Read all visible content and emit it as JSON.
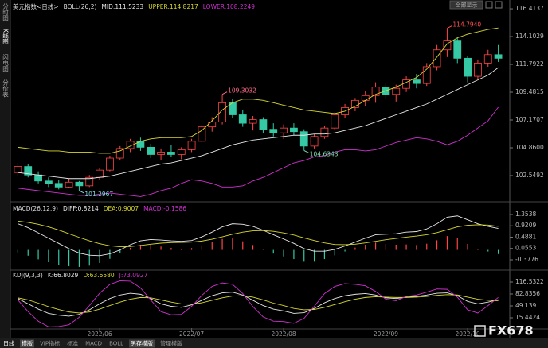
{
  "ui": {
    "sidebar": [
      "分时图",
      "K线图",
      "闪电图",
      "分价表"
    ],
    "top_button": "全部显示",
    "toolbar": [
      "日线",
      "模版",
      "VIP指标",
      "标准",
      "MACD",
      "BOLL",
      "另存模版",
      "管理模版"
    ],
    "watermark": "FX678"
  },
  "chart_data": [
    {
      "type": "candlestick",
      "title": "美元指数<日线>",
      "indicator": "BOLL(26,2)",
      "up_color": "#ff4545",
      "down_color": "#35c9a5",
      "categories": [
        null,
        null,
        null,
        null,
        null,
        null,
        null,
        null,
        "2022/06",
        null,
        null,
        null,
        null,
        null,
        null,
        null,
        null,
        "2022/07",
        null,
        null,
        null,
        null,
        null,
        null,
        null,
        null,
        "2022/08",
        null,
        null,
        null,
        null,
        null,
        null,
        null,
        null,
        null,
        "2022/09",
        null,
        null,
        null,
        null,
        null,
        null,
        null,
        "2022/10",
        null,
        null,
        null
      ],
      "ohlc": [
        [
          102.8,
          103.6,
          102.5,
          103.3
        ],
        [
          103.3,
          103.5,
          102.4,
          102.6
        ],
        [
          102.6,
          102.9,
          101.9,
          102.1
        ],
        [
          102.1,
          102.4,
          101.6,
          101.9
        ],
        [
          101.9,
          102.2,
          101.4,
          101.6
        ],
        [
          101.6,
          102.3,
          101.5,
          102.0
        ],
        [
          102.0,
          102.1,
          101.2967,
          101.7
        ],
        [
          101.7,
          102.6,
          101.6,
          102.4
        ],
        [
          102.4,
          103.2,
          102.2,
          103.0
        ],
        [
          103.0,
          104.2,
          102.9,
          104.0
        ],
        [
          104.0,
          105.0,
          103.8,
          104.8
        ],
        [
          104.8,
          105.6,
          104.5,
          105.4
        ],
        [
          105.4,
          105.7,
          104.6,
          104.9
        ],
        [
          104.9,
          105.2,
          104.0,
          104.3
        ],
        [
          104.3,
          104.8,
          103.8,
          104.5
        ],
        [
          104.5,
          105.1,
          104.1,
          104.3
        ],
        [
          104.3,
          104.9,
          103.9,
          104.7
        ],
        [
          104.7,
          105.6,
          104.5,
          105.4
        ],
        [
          105.4,
          106.8,
          105.3,
          106.6
        ],
        [
          106.6,
          107.4,
          106.2,
          107.0
        ],
        [
          107.0,
          109.3032,
          106.8,
          108.6
        ],
        [
          108.6,
          108.9,
          107.3,
          107.6
        ],
        [
          107.6,
          108.0,
          106.6,
          106.9
        ],
        [
          106.9,
          107.5,
          106.3,
          107.2
        ],
        [
          107.2,
          107.4,
          106.1,
          106.4
        ],
        [
          106.4,
          106.9,
          105.8,
          106.1
        ],
        [
          106.1,
          106.8,
          105.6,
          106.5
        ],
        [
          106.5,
          106.9,
          105.9,
          106.2
        ],
        [
          106.2,
          106.4,
          104.6343,
          105.0
        ],
        [
          105.0,
          106.0,
          104.8,
          105.8
        ],
        [
          105.8,
          106.7,
          105.6,
          106.5
        ],
        [
          106.5,
          107.8,
          106.3,
          107.6
        ],
        [
          107.6,
          108.5,
          107.3,
          108.2
        ],
        [
          108.2,
          109.0,
          107.9,
          108.8
        ],
        [
          108.8,
          109.6,
          108.3,
          109.2
        ],
        [
          109.2,
          110.3,
          108.6,
          109.9
        ],
        [
          109.9,
          110.2,
          108.9,
          109.3
        ],
        [
          109.3,
          110.1,
          108.7,
          109.8
        ],
        [
          109.8,
          110.8,
          109.5,
          110.5
        ],
        [
          110.5,
          111.0,
          109.8,
          110.2
        ],
        [
          110.2,
          111.9,
          110.0,
          111.6
        ],
        [
          111.6,
          113.4,
          111.3,
          113.0
        ],
        [
          113.0,
          114.794,
          112.4,
          113.8
        ],
        [
          113.8,
          114.0,
          111.9,
          112.3
        ],
        [
          112.3,
          112.5,
          110.3,
          110.8
        ],
        [
          110.8,
          112.2,
          110.6,
          111.9
        ],
        [
          111.9,
          113.0,
          111.6,
          112.6
        ],
        [
          112.6,
          113.4,
          112.0,
          112.3
        ]
      ],
      "annotations": [
        {
          "value": 109.3032,
          "label": "109.3032",
          "color": "#ff6b8a"
        },
        {
          "value": 104.6343,
          "label": "104.6343",
          "color": "#7fe0b0"
        },
        {
          "value": 101.2967,
          "label": "101.2967",
          "color": "#7fd8e0"
        },
        {
          "value": 114.794,
          "label": "114.7940",
          "color": "#ff5050"
        }
      ],
      "series": [
        {
          "name": "MID:111.5233",
          "color": "#e8e8e8",
          "values": [
            102.8,
            102.7,
            102.6,
            102.5,
            102.4,
            102.3,
            102.3,
            102.3,
            102.4,
            102.5,
            102.7,
            102.9,
            103.1,
            103.3,
            103.5,
            103.6,
            103.8,
            104.0,
            104.2,
            104.5,
            104.8,
            105.1,
            105.3,
            105.5,
            105.6,
            105.7,
            105.8,
            105.9,
            105.9,
            106.0,
            106.0,
            106.1,
            106.3,
            106.5,
            106.7,
            107.0,
            107.3,
            107.6,
            107.9,
            108.2,
            108.5,
            108.9,
            109.3,
            109.7,
            110.1,
            110.5,
            110.9,
            111.5233
          ]
        },
        {
          "name": "UPPER:114.8217",
          "color": "#d8d830",
          "values": [
            104.9,
            104.8,
            104.7,
            104.6,
            104.6,
            104.5,
            104.5,
            104.5,
            104.4,
            104.4,
            104.6,
            105.0,
            105.4,
            105.6,
            105.7,
            105.7,
            105.7,
            105.8,
            106.3,
            107.1,
            108.0,
            108.6,
            108.9,
            108.9,
            108.8,
            108.6,
            108.4,
            108.2,
            108.0,
            107.9,
            107.8,
            107.7,
            107.9,
            108.3,
            108.8,
            109.3,
            109.6,
            109.9,
            110.3,
            110.7,
            111.4,
            112.4,
            113.5,
            114.0,
            114.3,
            114.5,
            114.7,
            114.8217
          ]
        },
        {
          "name": "LOWER:108.2249",
          "color": "#d030d0",
          "values": [
            101.5,
            101.4,
            101.3,
            101.2,
            101.1,
            101.0,
            100.9,
            100.9,
            101.0,
            101.1,
            101.0,
            100.9,
            100.8,
            101.0,
            101.3,
            101.5,
            101.9,
            102.2,
            102.1,
            101.9,
            101.6,
            101.6,
            101.7,
            102.1,
            102.4,
            102.8,
            103.2,
            103.6,
            103.8,
            104.1,
            104.2,
            104.5,
            104.7,
            104.7,
            104.6,
            104.7,
            105.0,
            105.3,
            105.5,
            105.7,
            105.6,
            105.4,
            105.1,
            105.4,
            105.9,
            106.5,
            107.1,
            108.2249
          ]
        }
      ],
      "ylim": [
        100.5,
        116.88
      ],
      "yticks": [
        102.5492,
        {
          "value": 104.86,
          "label": "104.8600"
        },
        107.1707,
        109.4815,
        111.7922,
        114.1029,
        116.4137
      ]
    },
    {
      "type": "macd",
      "indicator": "MACD(26,12,9)",
      "series": [
        {
          "name": "DIFF:0.8214",
          "kind": "line",
          "color": "#e8e8e8",
          "values": [
            1.0,
            0.85,
            0.65,
            0.45,
            0.25,
            0.05,
            -0.12,
            -0.2,
            -0.22,
            -0.15,
            0.0,
            0.2,
            0.35,
            0.4,
            0.38,
            0.35,
            0.33,
            0.36,
            0.5,
            0.68,
            0.88,
            1.0,
            0.98,
            0.9,
            0.75,
            0.58,
            0.42,
            0.25,
            0.05,
            -0.05,
            -0.05,
            0.02,
            0.15,
            0.3,
            0.45,
            0.58,
            0.6,
            0.62,
            0.68,
            0.7,
            0.8,
            1.0,
            1.25,
            1.3,
            1.15,
            1.0,
            0.9,
            0.8214
          ]
        },
        {
          "name": "DEA:0.9007",
          "kind": "line",
          "color": "#d8d830",
          "values": [
            1.1,
            1.05,
            0.98,
            0.88,
            0.76,
            0.62,
            0.48,
            0.35,
            0.24,
            0.16,
            0.12,
            0.13,
            0.17,
            0.22,
            0.26,
            0.28,
            0.29,
            0.3,
            0.34,
            0.41,
            0.5,
            0.6,
            0.68,
            0.73,
            0.74,
            0.71,
            0.65,
            0.57,
            0.46,
            0.36,
            0.27,
            0.21,
            0.2,
            0.22,
            0.27,
            0.33,
            0.39,
            0.44,
            0.49,
            0.53,
            0.58,
            0.66,
            0.77,
            0.88,
            0.94,
            0.96,
            0.95,
            0.9007
          ]
        },
        {
          "name": "MACD:-0.1586",
          "kind": "bar",
          "color": "#d030d0",
          "up_color": "#ff4545",
          "down_color": "#35c9a5",
          "values": [
            -0.1,
            -0.22,
            -0.36,
            -0.47,
            -0.56,
            -0.62,
            -0.65,
            -0.6,
            -0.5,
            -0.34,
            -0.13,
            0.08,
            0.2,
            0.2,
            0.13,
            0.08,
            0.04,
            0.07,
            0.18,
            0.3,
            0.42,
            0.44,
            0.33,
            0.19,
            0.01,
            -0.14,
            -0.25,
            -0.35,
            -0.45,
            -0.45,
            -0.35,
            -0.21,
            -0.06,
            0.09,
            0.2,
            0.28,
            0.23,
            0.2,
            0.21,
            0.19,
            0.24,
            0.37,
            0.53,
            0.46,
            0.23,
            0.04,
            -0.06,
            -0.1586
          ]
        }
      ],
      "ylim": [
        -0.712,
        1.718
      ],
      "yticks": [
        {
          "value": -0.3776,
          "label": "-0.3776"
        },
        0.0553,
        0.4881,
        0.9209,
        1.3538
      ]
    },
    {
      "type": "line",
      "indicator": "KDJ(9,3,3)",
      "series": [
        {
          "name": "K:66.8029",
          "color": "#e8e8e8",
          "values": [
            70,
            55,
            40,
            28,
            23,
            20,
            25,
            38,
            55,
            70,
            80,
            85,
            82,
            70,
            55,
            48,
            45,
            52,
            65,
            78,
            86,
            88,
            80,
            65,
            50,
            40,
            35,
            28,
            30,
            42,
            58,
            70,
            78,
            82,
            84,
            80,
            72,
            70,
            74,
            76,
            80,
            85,
            86,
            78,
            62,
            55,
            60,
            66.8029
          ]
        },
        {
          "name": "D:63.6580",
          "color": "#d8d830",
          "values": [
            72,
            66,
            57,
            47,
            39,
            32,
            29,
            32,
            40,
            50,
            60,
            68,
            73,
            72,
            66,
            60,
            55,
            54,
            58,
            65,
            72,
            77,
            78,
            74,
            66,
            57,
            50,
            42,
            38,
            39,
            45,
            53,
            61,
            68,
            73,
            75,
            74,
            73,
            73,
            74,
            76,
            79,
            81,
            80,
            74,
            68,
            65,
            63.658
          ]
        },
        {
          "name": "J:73.0927",
          "color": "#d030d0",
          "values": [
            66,
            33,
            6,
            -10,
            -9,
            -4,
            17,
            50,
            85,
            110,
            120,
            119,
            100,
            66,
            33,
            24,
            25,
            48,
            79,
            104,
            114,
            110,
            84,
            47,
            18,
            6,
            5,
            0,
            14,
            48,
            84,
            104,
            112,
            110,
            106,
            90,
            68,
            64,
            76,
            80,
            88,
            97,
            96,
            74,
            38,
            29,
            50,
            73.0927
          ]
        }
      ],
      "ylim": [
        -11.5,
        145.7
      ],
      "yticks": [
        {
          "value": 15.4424,
          "label": "15.4424"
        },
        49.139,
        {
          "value": 82.8356,
          "label": "82.8356"
        },
        {
          "value": 116.5322,
          "label": "116.5322"
        }
      ]
    }
  ]
}
